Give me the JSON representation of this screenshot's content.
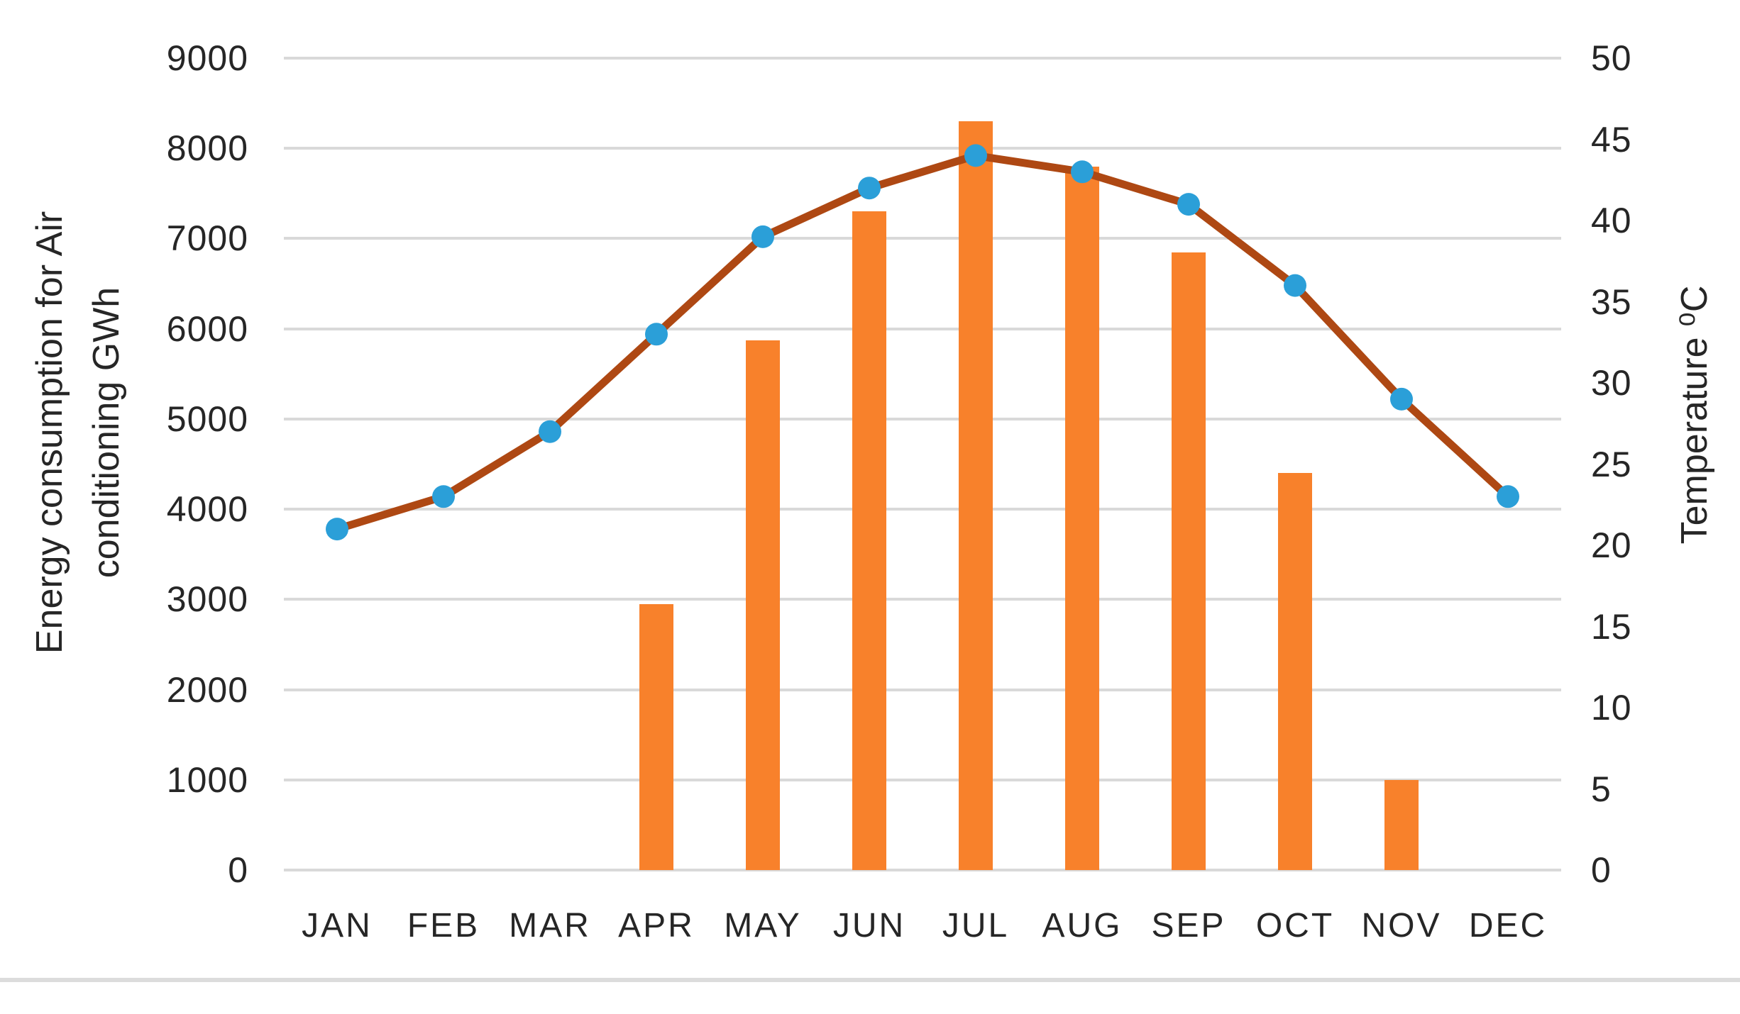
{
  "chart_data": {
    "type": "bar",
    "subtype": "combo-bar-line-dual-axis",
    "title": "",
    "categories": [
      "JAN",
      "FEB",
      "MAR",
      "APR",
      "MAY",
      "JUN",
      "JUL",
      "AUG",
      "SEP",
      "OCT",
      "NOV",
      "DEC"
    ],
    "series": [
      {
        "name": "Energy consumption for Air conditioning GWh",
        "type": "bar",
        "axis": "left",
        "color": "#F8812B",
        "values": [
          0,
          0,
          0,
          2950,
          5870,
          7300,
          8300,
          7800,
          6850,
          4400,
          1000,
          0
        ]
      },
      {
        "name": "Temperature",
        "type": "line",
        "axis": "right",
        "color": "#AE4813",
        "marker_color": "#2B9FD8",
        "values": [
          21,
          23,
          27,
          33,
          39,
          42,
          44,
          43,
          41,
          36,
          29,
          23
        ]
      }
    ],
    "left_axis": {
      "title_line1": "Energy consumption for Air",
      "title_line2": "conditioning GWh",
      "min": 0,
      "max": 9000,
      "step": 1000,
      "ticks": [
        "0",
        "1000",
        "2000",
        "3000",
        "4000",
        "5000",
        "6000",
        "7000",
        "8000",
        "9000"
      ]
    },
    "right_axis": {
      "title": "Temperature ⁰C",
      "min": 0,
      "max": 50,
      "step": 5,
      "ticks": [
        "0",
        "5",
        "10",
        "15",
        "20",
        "25",
        "30",
        "35",
        "40",
        "45",
        "50"
      ]
    },
    "legend": "none",
    "gridlines": "horizontal",
    "grid_color": "#D9D9D9",
    "text_color": "#262626",
    "divider_color": "#DCDCDC"
  }
}
